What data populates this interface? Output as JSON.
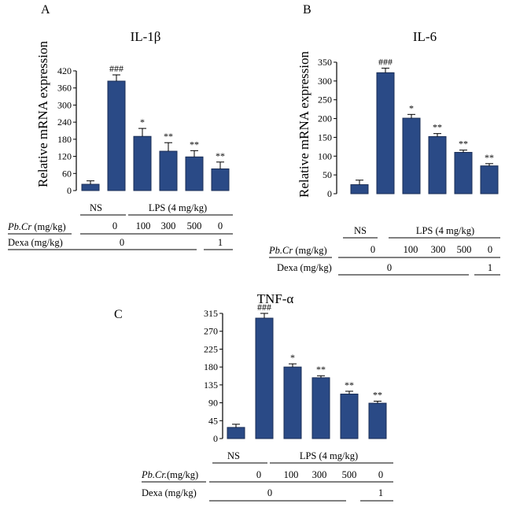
{
  "figure": {
    "bar_color": "#2a4a86",
    "bar_stroke": "#1b2f57",
    "row_labels": {
      "ns": "NS",
      "lps": "LPS (4 mg/kg)",
      "pbcr_name": "Pb.Cr",
      "pbcr_unit": "(mg/kg)",
      "pbcr_name_c": "Pb.Cr.",
      "pbcr_unit_c": "(mg/kg)",
      "dexa": "Dexa (mg/kg)"
    },
    "pbcr_doses": [
      "0",
      "100",
      "300",
      "500",
      "0"
    ],
    "dexa_values": [
      "0",
      "1"
    ]
  },
  "chart_data": [
    {
      "panel": "A",
      "type": "bar",
      "title": "IL-1β",
      "ylabel": "Relative mRNA expression",
      "xlabel": "",
      "categories": [
        "NS",
        "LPS",
        "LPS+Pb.Cr 100",
        "LPS+Pb.Cr 300",
        "LPS+Pb.Cr 500",
        "LPS+Dexa 1"
      ],
      "values": [
        22,
        384,
        190,
        138,
        118,
        76
      ],
      "errors": [
        12,
        22,
        28,
        30,
        22,
        24
      ],
      "significance": [
        "",
        "###",
        "*",
        "**",
        "**",
        "**"
      ],
      "ylim": [
        0,
        420
      ],
      "yticks": [
        0,
        60,
        120,
        180,
        240,
        300,
        360,
        420
      ]
    },
    {
      "panel": "B",
      "type": "bar",
      "title": "IL-6",
      "ylabel": "Relative mRNA expression",
      "xlabel": "",
      "categories": [
        "NS",
        "LPS",
        "LPS+Pb.Cr 100",
        "LPS+Pb.Cr 300",
        "LPS+Pb.Cr 500",
        "LPS+Dexa 1"
      ],
      "values": [
        24,
        322,
        201,
        152,
        110,
        74
      ],
      "errors": [
        12,
        12,
        10,
        8,
        6,
        6
      ],
      "significance": [
        "",
        "###",
        "*",
        "**",
        "**",
        "**"
      ],
      "ylim": [
        0,
        350
      ],
      "yticks": [
        0,
        50,
        100,
        150,
        200,
        250,
        300,
        350
      ]
    },
    {
      "panel": "C",
      "type": "bar",
      "title": "TNF-α",
      "ylabel": "",
      "xlabel": "",
      "categories": [
        "NS",
        "LPS",
        "LPS+Pb.Cr 100",
        "LPS+Pb.Cr 300",
        "LPS+Pb.Cr 500",
        "LPS+Dexa 1"
      ],
      "values": [
        28,
        303,
        180,
        153,
        112,
        89
      ],
      "errors": [
        8,
        12,
        8,
        5,
        7,
        5
      ],
      "significance": [
        "",
        "###",
        "*",
        "**",
        "**",
        "**"
      ],
      "ylim": [
        0,
        315
      ],
      "yticks": [
        0,
        45,
        90,
        135,
        180,
        225,
        270,
        315
      ]
    }
  ]
}
